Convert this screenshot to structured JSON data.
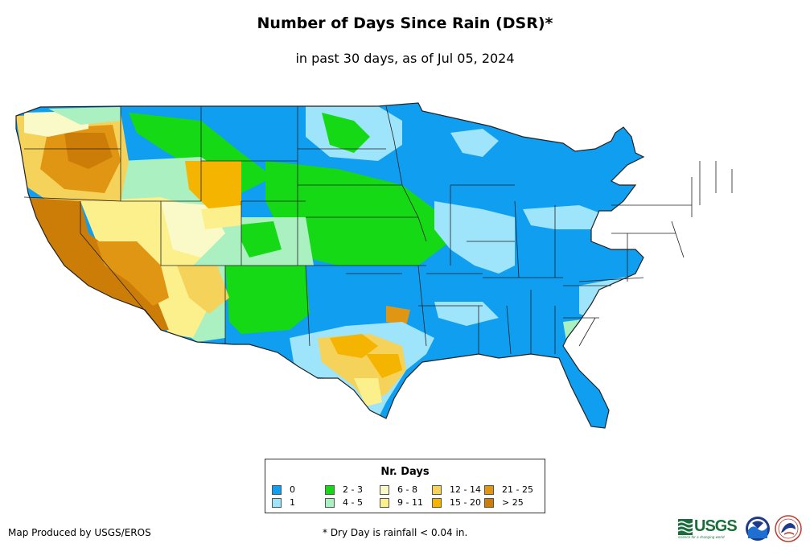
{
  "title": "Number of Days Since Rain (DSR)*",
  "subtitle": "in past 30 days, as of Jul 05, 2024",
  "legend": {
    "title": "Nr. Days",
    "items": [
      {
        "label": "0",
        "color": "#0f9ef0"
      },
      {
        "label": "1",
        "color": "#9ee4fa"
      },
      {
        "label": "2 - 3",
        "color": "#16d916"
      },
      {
        "label": "4 - 5",
        "color": "#aaf0c0"
      },
      {
        "label": "6 - 8",
        "color": "#fafac8"
      },
      {
        "label": "9 - 11",
        "color": "#fbf08c"
      },
      {
        "label": "12 - 14",
        "color": "#f5d25a"
      },
      {
        "label": "15 - 20",
        "color": "#f5b400"
      },
      {
        "label": "21 - 25",
        "color": "#e09612"
      },
      {
        "label": "> 25",
        "color": "#cc7d08"
      }
    ]
  },
  "footer": {
    "credit": "Map Produced by USGS/EROS",
    "note": "* Dry Day is rainfall < 0.04 in."
  },
  "logos": {
    "usgs": "USGS",
    "usgs_tagline": "science for a changing world",
    "noaa": "noaa-logo",
    "nws": "nws-logo"
  }
}
